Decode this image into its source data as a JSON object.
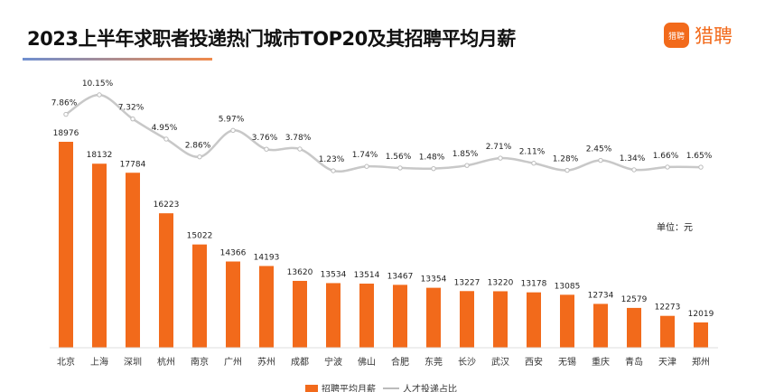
{
  "header": {
    "title": "2023上半年求职者投递热门城市TOP20及其招聘平均月薪",
    "logo_text": "猎聘",
    "logo_icon_text": "猎聘"
  },
  "unit_label": "单位：元",
  "chart_data": {
    "type": "bar+line",
    "categories": [
      "北京",
      "上海",
      "深圳",
      "杭州",
      "南京",
      "广州",
      "苏州",
      "成都",
      "宁波",
      "佛山",
      "合肥",
      "东莞",
      "长沙",
      "武汉",
      "西安",
      "无锡",
      "重庆",
      "青岛",
      "天津",
      "郑州"
    ],
    "series": [
      {
        "name": "招聘平均月薪",
        "type": "bar",
        "color": "#f26a1b",
        "values": [
          18976,
          18132,
          17784,
          16223,
          15022,
          14366,
          14193,
          13620,
          13534,
          13514,
          13467,
          13354,
          13227,
          13220,
          13178,
          13085,
          12734,
          12579,
          12273,
          12019
        ]
      },
      {
        "name": "人才投递占比",
        "type": "line",
        "color": "#c8c8c8",
        "values": [
          7.86,
          10.15,
          7.32,
          4.95,
          2.86,
          5.97,
          3.76,
          3.78,
          1.23,
          1.74,
          1.56,
          1.48,
          1.85,
          2.71,
          2.11,
          1.28,
          2.45,
          1.34,
          1.66,
          1.65
        ],
        "labels": [
          "7.86%",
          "10.15%",
          "7.32%",
          "4.95%",
          "2.86%",
          "5.97%",
          "3.76%",
          "3.78%",
          "1.23%",
          "1.74%",
          "1.56%",
          "1.48%",
          "1.85%",
          "2.71%",
          "2.11%",
          "1.28%",
          "2.45%",
          "1.34%",
          "1.66%",
          "1.65%"
        ]
      }
    ],
    "legend_position": "bottom",
    "grid": false
  }
}
